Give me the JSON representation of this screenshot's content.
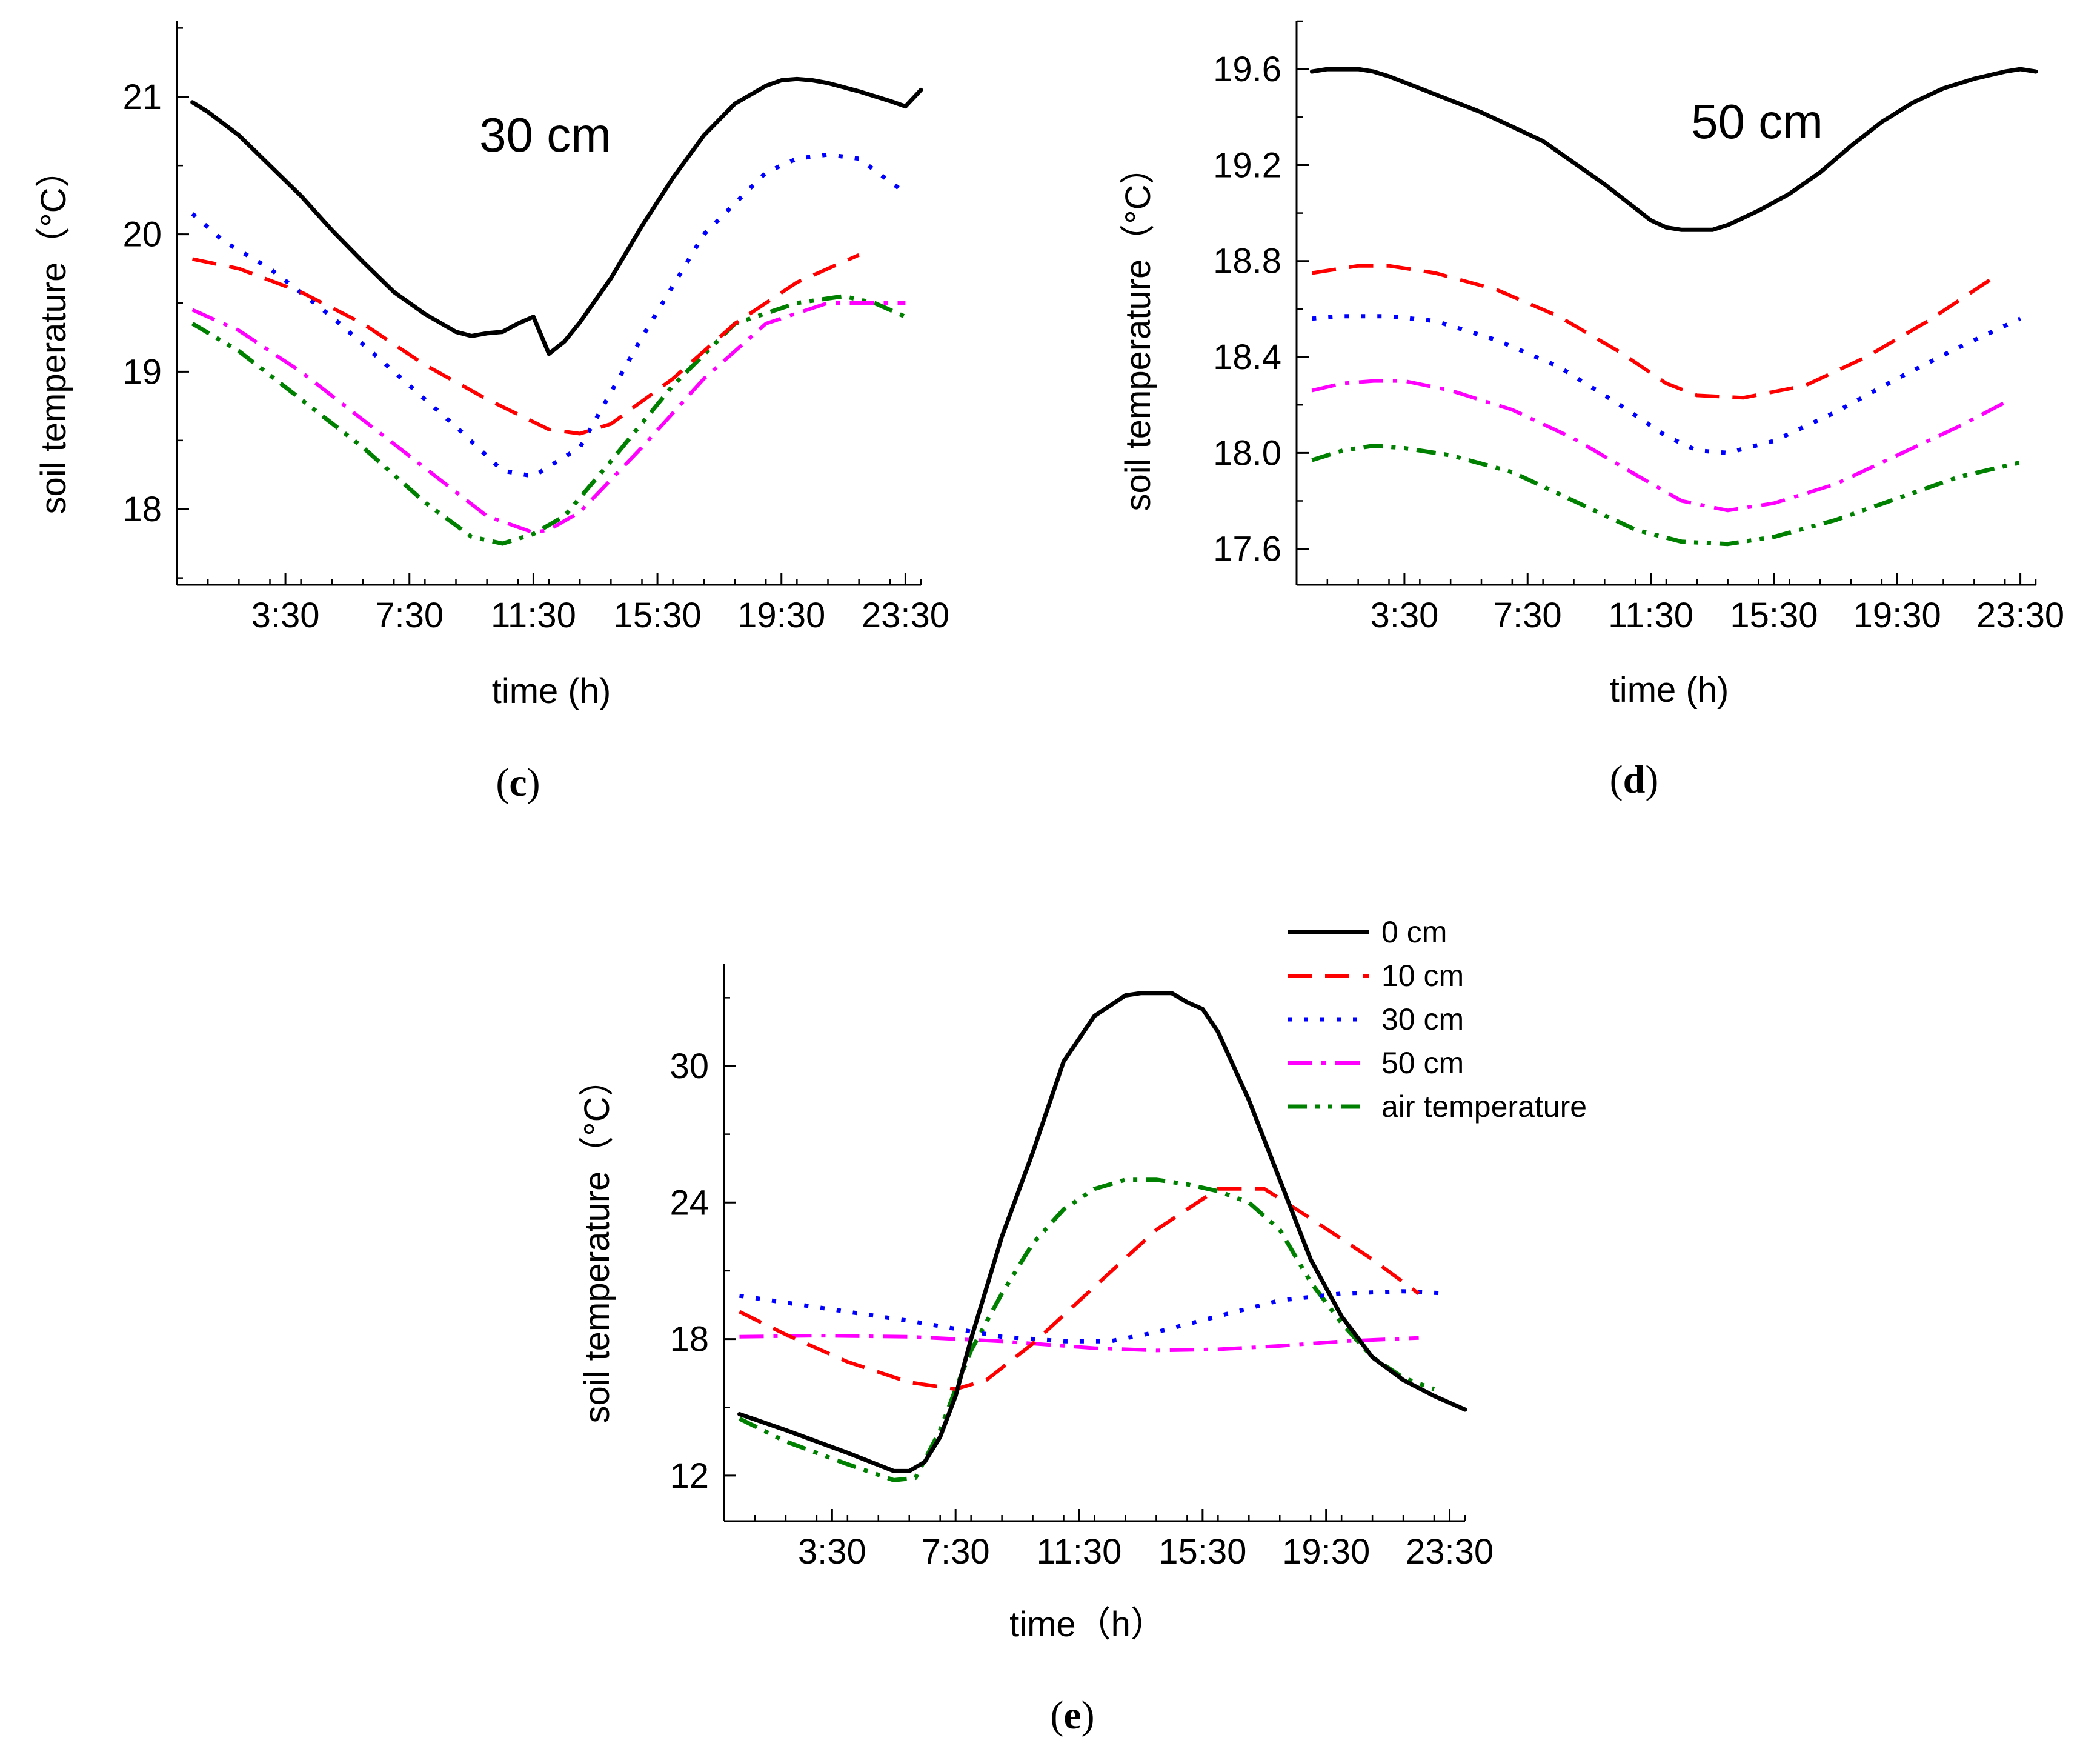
{
  "series_styles": [
    {
      "key": "0cm",
      "name": "0 cm",
      "color": "#000000",
      "dash": "none",
      "width": 7
    },
    {
      "key": "10cm",
      "name": "10 cm",
      "color": "#ff0000",
      "dash": "40,22",
      "width": 6
    },
    {
      "key": "30cm",
      "name": "30 cm",
      "color": "#0000ff",
      "dash": "7,20",
      "width": 7
    },
    {
      "key": "50cm",
      "name": "50 cm",
      "color": "#ff00ff",
      "dash": "40,16,7,16",
      "width": 6
    },
    {
      "key": "air",
      "name": "air temperature",
      "color": "#008000",
      "dash": "32,14,7,14,7,14",
      "width": 7
    }
  ],
  "chart_data": [
    {
      "id": "c",
      "type": "line",
      "title": "30 cm",
      "caption": "c",
      "xlabel": "time (h)",
      "ylabel": "soil temperature（°C）",
      "xlim": [
        0,
        24
      ],
      "ylim": [
        17.45,
        21.55
      ],
      "xticks": [
        {
          "v": 3.5,
          "label": "3:30"
        },
        {
          "v": 7.5,
          "label": "7:30"
        },
        {
          "v": 11.5,
          "label": "11:30"
        },
        {
          "v": 15.5,
          "label": "15:30"
        },
        {
          "v": 19.5,
          "label": "19:30"
        },
        {
          "v": 23.5,
          "label": "23:30"
        }
      ],
      "yticks": [
        {
          "v": 18,
          "label": "18"
        },
        {
          "v": 19,
          "label": "19"
        },
        {
          "v": 20,
          "label": "20"
        },
        {
          "v": 21,
          "label": "21"
        }
      ],
      "series": [
        {
          "key": "0cm",
          "name": "0 cm",
          "x": [
            0.5,
            1,
            2,
            3,
            4,
            5,
            6,
            7,
            8,
            9,
            9.5,
            10,
            10.5,
            11,
            11.5,
            12,
            12.5,
            13,
            14,
            15,
            16,
            17,
            18,
            19,
            19.5,
            20,
            20.5,
            21,
            21.5,
            22,
            23,
            23.5,
            24
          ],
          "y": [
            20.96,
            20.89,
            20.72,
            20.5,
            20.28,
            20.03,
            19.8,
            19.58,
            19.42,
            19.29,
            19.26,
            19.28,
            19.29,
            19.35,
            19.4,
            19.13,
            19.22,
            19.36,
            19.68,
            20.06,
            20.41,
            20.72,
            20.95,
            21.08,
            21.12,
            21.13,
            21.12,
            21.1,
            21.07,
            21.04,
            20.97,
            20.93,
            21.05
          ]
        },
        {
          "key": "10cm",
          "name": "10 cm",
          "x": [
            0.5,
            2,
            4,
            6,
            8,
            10,
            12,
            13,
            14,
            16,
            18,
            20,
            22
          ],
          "y": [
            19.82,
            19.75,
            19.58,
            19.35,
            19.05,
            18.8,
            18.58,
            18.55,
            18.62,
            18.95,
            19.35,
            19.65,
            19.85
          ]
        },
        {
          "key": "30cm",
          "name": "30 cm",
          "x": [
            0.5,
            1.5,
            3,
            5,
            7,
            9,
            10.5,
            11.5,
            13,
            15,
            17,
            19,
            20,
            21,
            22,
            23.5
          ],
          "y": [
            20.15,
            19.95,
            19.75,
            19.4,
            19.0,
            18.6,
            18.28,
            18.24,
            18.45,
            19.25,
            20.0,
            20.45,
            20.55,
            20.58,
            20.55,
            20.3
          ]
        },
        {
          "key": "50cm",
          "name": "50 cm",
          "x": [
            0.5,
            2,
            4,
            6,
            8,
            10,
            11.5,
            12,
            13,
            15,
            17,
            19,
            21,
            23.5
          ],
          "y": [
            19.45,
            19.3,
            19.0,
            18.65,
            18.3,
            17.95,
            17.83,
            17.85,
            17.98,
            18.45,
            18.95,
            19.35,
            19.5,
            19.5
          ]
        },
        {
          "key": "air",
          "name": "air temperature",
          "x": [
            0.5,
            2,
            4,
            6,
            8,
            9.5,
            10.5,
            11.5,
            12.5,
            14,
            16,
            18,
            20,
            21.5,
            22.5,
            23.5
          ],
          "y": [
            19.35,
            19.15,
            18.8,
            18.45,
            18.05,
            17.8,
            17.75,
            17.82,
            17.95,
            18.35,
            18.9,
            19.35,
            19.5,
            19.55,
            19.5,
            19.4
          ]
        }
      ]
    },
    {
      "id": "d",
      "type": "line",
      "title": "50 cm",
      "caption": "d",
      "xlabel": "time (h)",
      "ylabel": "soil temperature（°C）",
      "xlim": [
        0,
        24
      ],
      "ylim": [
        17.45,
        19.8
      ],
      "xticks": [
        {
          "v": 3.5,
          "label": "3:30"
        },
        {
          "v": 7.5,
          "label": "7:30"
        },
        {
          "v": 11.5,
          "label": "11:30"
        },
        {
          "v": 15.5,
          "label": "15:30"
        },
        {
          "v": 19.5,
          "label": "19:30"
        },
        {
          "v": 23.5,
          "label": "23:30"
        }
      ],
      "yticks": [
        {
          "v": 17.6,
          "label": "17.6"
        },
        {
          "v": 18.0,
          "label": "18.0"
        },
        {
          "v": 18.4,
          "label": "18.4"
        },
        {
          "v": 18.8,
          "label": "18.8"
        },
        {
          "v": 19.2,
          "label": "19.2"
        },
        {
          "v": 19.6,
          "label": "19.6"
        }
      ],
      "series": [
        {
          "key": "0cm",
          "name": "0 cm",
          "x": [
            0.5,
            1,
            1.5,
            2,
            2.5,
            3,
            4,
            5,
            6,
            7,
            8,
            9,
            10,
            11,
            11.5,
            12,
            12.5,
            13,
            13.5,
            14,
            15,
            16,
            17,
            18,
            19,
            20,
            21,
            22,
            23,
            23.5,
            24
          ],
          "y": [
            19.59,
            19.6,
            19.6,
            19.6,
            19.59,
            19.57,
            19.52,
            19.47,
            19.42,
            19.36,
            19.3,
            19.21,
            19.12,
            19.02,
            18.97,
            18.94,
            18.93,
            18.93,
            18.93,
            18.95,
            19.01,
            19.08,
            19.17,
            19.28,
            19.38,
            19.46,
            19.52,
            19.56,
            19.59,
            19.6,
            19.59
          ]
        },
        {
          "key": "10cm",
          "name": "10 cm",
          "x": [
            0.5,
            2,
            3,
            4.5,
            6.5,
            8.5,
            10.5,
            12,
            13,
            14.5,
            16.5,
            18.5,
            20.5,
            22.5
          ],
          "y": [
            18.75,
            18.78,
            18.78,
            18.75,
            18.68,
            18.57,
            18.42,
            18.29,
            18.24,
            18.23,
            18.28,
            18.4,
            18.55,
            18.72
          ]
        },
        {
          "key": "30cm",
          "name": "30 cm",
          "x": [
            0.5,
            1.5,
            3,
            4.5,
            6.5,
            8.5,
            10.5,
            12,
            13,
            14,
            15.5,
            17.5,
            19.5,
            21.5,
            23.5
          ],
          "y": [
            18.56,
            18.57,
            18.57,
            18.55,
            18.47,
            18.36,
            18.2,
            18.07,
            18.01,
            18.0,
            18.05,
            18.17,
            18.31,
            18.44,
            18.56
          ]
        },
        {
          "key": "50cm",
          "name": "50 cm",
          "x": [
            0.5,
            1.5,
            2.5,
            3.5,
            5,
            7,
            9,
            11,
            12.5,
            14,
            15.5,
            17.5,
            19.5,
            21.5,
            23
          ],
          "y": [
            18.26,
            18.29,
            18.3,
            18.3,
            18.26,
            18.18,
            18.06,
            17.91,
            17.8,
            17.76,
            17.79,
            17.87,
            17.99,
            18.11,
            18.21
          ]
        },
        {
          "key": "air",
          "name": "air temperature",
          "x": [
            0.5,
            1.5,
            2.5,
            3.5,
            5,
            7,
            9,
            11,
            12.5,
            14,
            15.5,
            17.5,
            19.5,
            21.5,
            23.5
          ],
          "y": [
            17.97,
            18.01,
            18.03,
            18.02,
            17.99,
            17.92,
            17.8,
            17.68,
            17.63,
            17.62,
            17.65,
            17.72,
            17.81,
            17.9,
            17.96
          ]
        }
      ]
    },
    {
      "id": "e",
      "type": "line",
      "title": "",
      "caption": "e",
      "xlabel": "time（h）",
      "ylabel": "soil temperature（°C）",
      "xlim": [
        0,
        24
      ],
      "ylim": [
        10,
        34.5
      ],
      "legend": "top-right",
      "xticks": [
        {
          "v": 3.5,
          "label": "3:30"
        },
        {
          "v": 7.5,
          "label": "7:30"
        },
        {
          "v": 11.5,
          "label": "11:30"
        },
        {
          "v": 15.5,
          "label": "15:30"
        },
        {
          "v": 19.5,
          "label": "19:30"
        },
        {
          "v": 23.5,
          "label": "23:30"
        }
      ],
      "yticks": [
        {
          "v": 12,
          "label": "12"
        },
        {
          "v": 18,
          "label": "18"
        },
        {
          "v": 24,
          "label": "24"
        },
        {
          "v": 30,
          "label": "30"
        }
      ],
      "series": [
        {
          "key": "0cm",
          "name": "0 cm",
          "x": [
            0.5,
            2,
            4,
            5.5,
            6,
            6.5,
            7,
            7.5,
            8,
            9,
            10,
            11,
            12,
            13,
            13.5,
            14.5,
            15,
            15.5,
            16,
            17,
            18,
            19,
            20,
            21,
            22,
            23,
            24
          ],
          "y": [
            14.7,
            14.0,
            13.0,
            12.2,
            12.2,
            12.6,
            13.7,
            15.5,
            18.0,
            22.5,
            26.2,
            30.2,
            32.2,
            33.1,
            33.2,
            33.2,
            32.8,
            32.5,
            31.5,
            28.5,
            25.0,
            21.5,
            19.0,
            17.2,
            16.2,
            15.5,
            14.9
          ]
        },
        {
          "key": "10cm",
          "name": "10 cm",
          "x": [
            0.5,
            2,
            4,
            6,
            7.5,
            8.5,
            10,
            12,
            14,
            16,
            17.5,
            19,
            21,
            22.5
          ],
          "y": [
            19.2,
            18.2,
            17.0,
            16.1,
            15.8,
            16.2,
            17.8,
            20.3,
            22.8,
            24.6,
            24.6,
            23.3,
            21.5,
            20.0
          ]
        },
        {
          "key": "30cm",
          "name": "30 cm",
          "x": [
            0.5,
            3,
            6,
            9,
            11,
            12.5,
            14,
            16,
            18,
            20,
            22,
            23.5
          ],
          "y": [
            19.9,
            19.4,
            18.8,
            18.1,
            17.9,
            17.9,
            18.3,
            19.0,
            19.7,
            20.0,
            20.1,
            20.0
          ]
        },
        {
          "key": "50cm",
          "name": "50 cm",
          "x": [
            0.5,
            3,
            6,
            9,
            12,
            14,
            16,
            18,
            20,
            22.5
          ],
          "y": [
            18.1,
            18.15,
            18.1,
            17.9,
            17.6,
            17.5,
            17.55,
            17.7,
            17.9,
            18.05
          ]
        },
        {
          "key": "air",
          "name": "air temperature",
          "x": [
            0.5,
            2,
            4,
            5.5,
            6.2,
            7,
            7.5,
            8,
            9,
            10,
            11,
            12,
            13,
            14,
            15,
            16,
            17,
            18,
            19,
            20,
            21,
            22,
            23
          ],
          "y": [
            14.5,
            13.5,
            12.5,
            11.8,
            11.9,
            14.0,
            15.8,
            17.5,
            20.0,
            22.2,
            23.7,
            24.6,
            25.0,
            25.0,
            24.8,
            24.5,
            24.0,
            22.8,
            20.5,
            18.7,
            17.2,
            16.3,
            15.8
          ]
        }
      ]
    }
  ]
}
